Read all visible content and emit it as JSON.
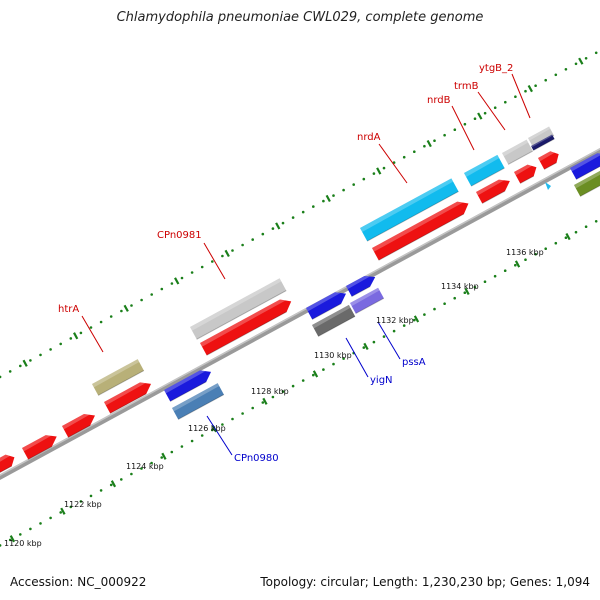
{
  "title": "Chlamydophila pneumoniae CWL029, complete genome",
  "footer": {
    "accession": "Accession: NC_000922",
    "summary": "Topology: circular; Length: 1,230,230 bp; Genes: 1,094"
  },
  "colors": {
    "backbone": "#8c8c8c",
    "tick_minor": "#1a7f1a",
    "red_gene": "#ee1111",
    "cyan_gene": "#11bbee",
    "blue_gene": "#1a1add",
    "gray_gene": "#c8c8c8",
    "olive_gene": "#b8b078",
    "steel_gene": "#4a7fb5",
    "dark_gray_gene": "#6a6a6a",
    "lavender_gene": "#7a6ae0",
    "green_gene": "#6b8e23",
    "navy_gene": "#1a1a6a",
    "label_red": "#cc0000",
    "label_blue": "#0000cc"
  },
  "ticks": [
    {
      "label": "1120 kbp"
    },
    {
      "label": "1122 kbp"
    },
    {
      "label": "1124 kbp"
    },
    {
      "label": "1126 kbp"
    },
    {
      "label": "1128 kbp"
    },
    {
      "label": "1130 kbp"
    },
    {
      "label": "1132 kbp"
    },
    {
      "label": "1134 kbp"
    },
    {
      "label": "1136 kbp"
    }
  ],
  "gene_labels": [
    {
      "text": "htrA",
      "color": "red"
    },
    {
      "text": "CPn0981",
      "color": "red"
    },
    {
      "text": "nrdA",
      "color": "red"
    },
    {
      "text": "nrdB",
      "color": "red"
    },
    {
      "text": "trmB",
      "color": "red"
    },
    {
      "text": "ytgB_2",
      "color": "red"
    },
    {
      "text": "CPn0980",
      "color": "blue"
    },
    {
      "text": "yigN",
      "color": "blue"
    },
    {
      "text": "pssA",
      "color": "blue"
    }
  ]
}
